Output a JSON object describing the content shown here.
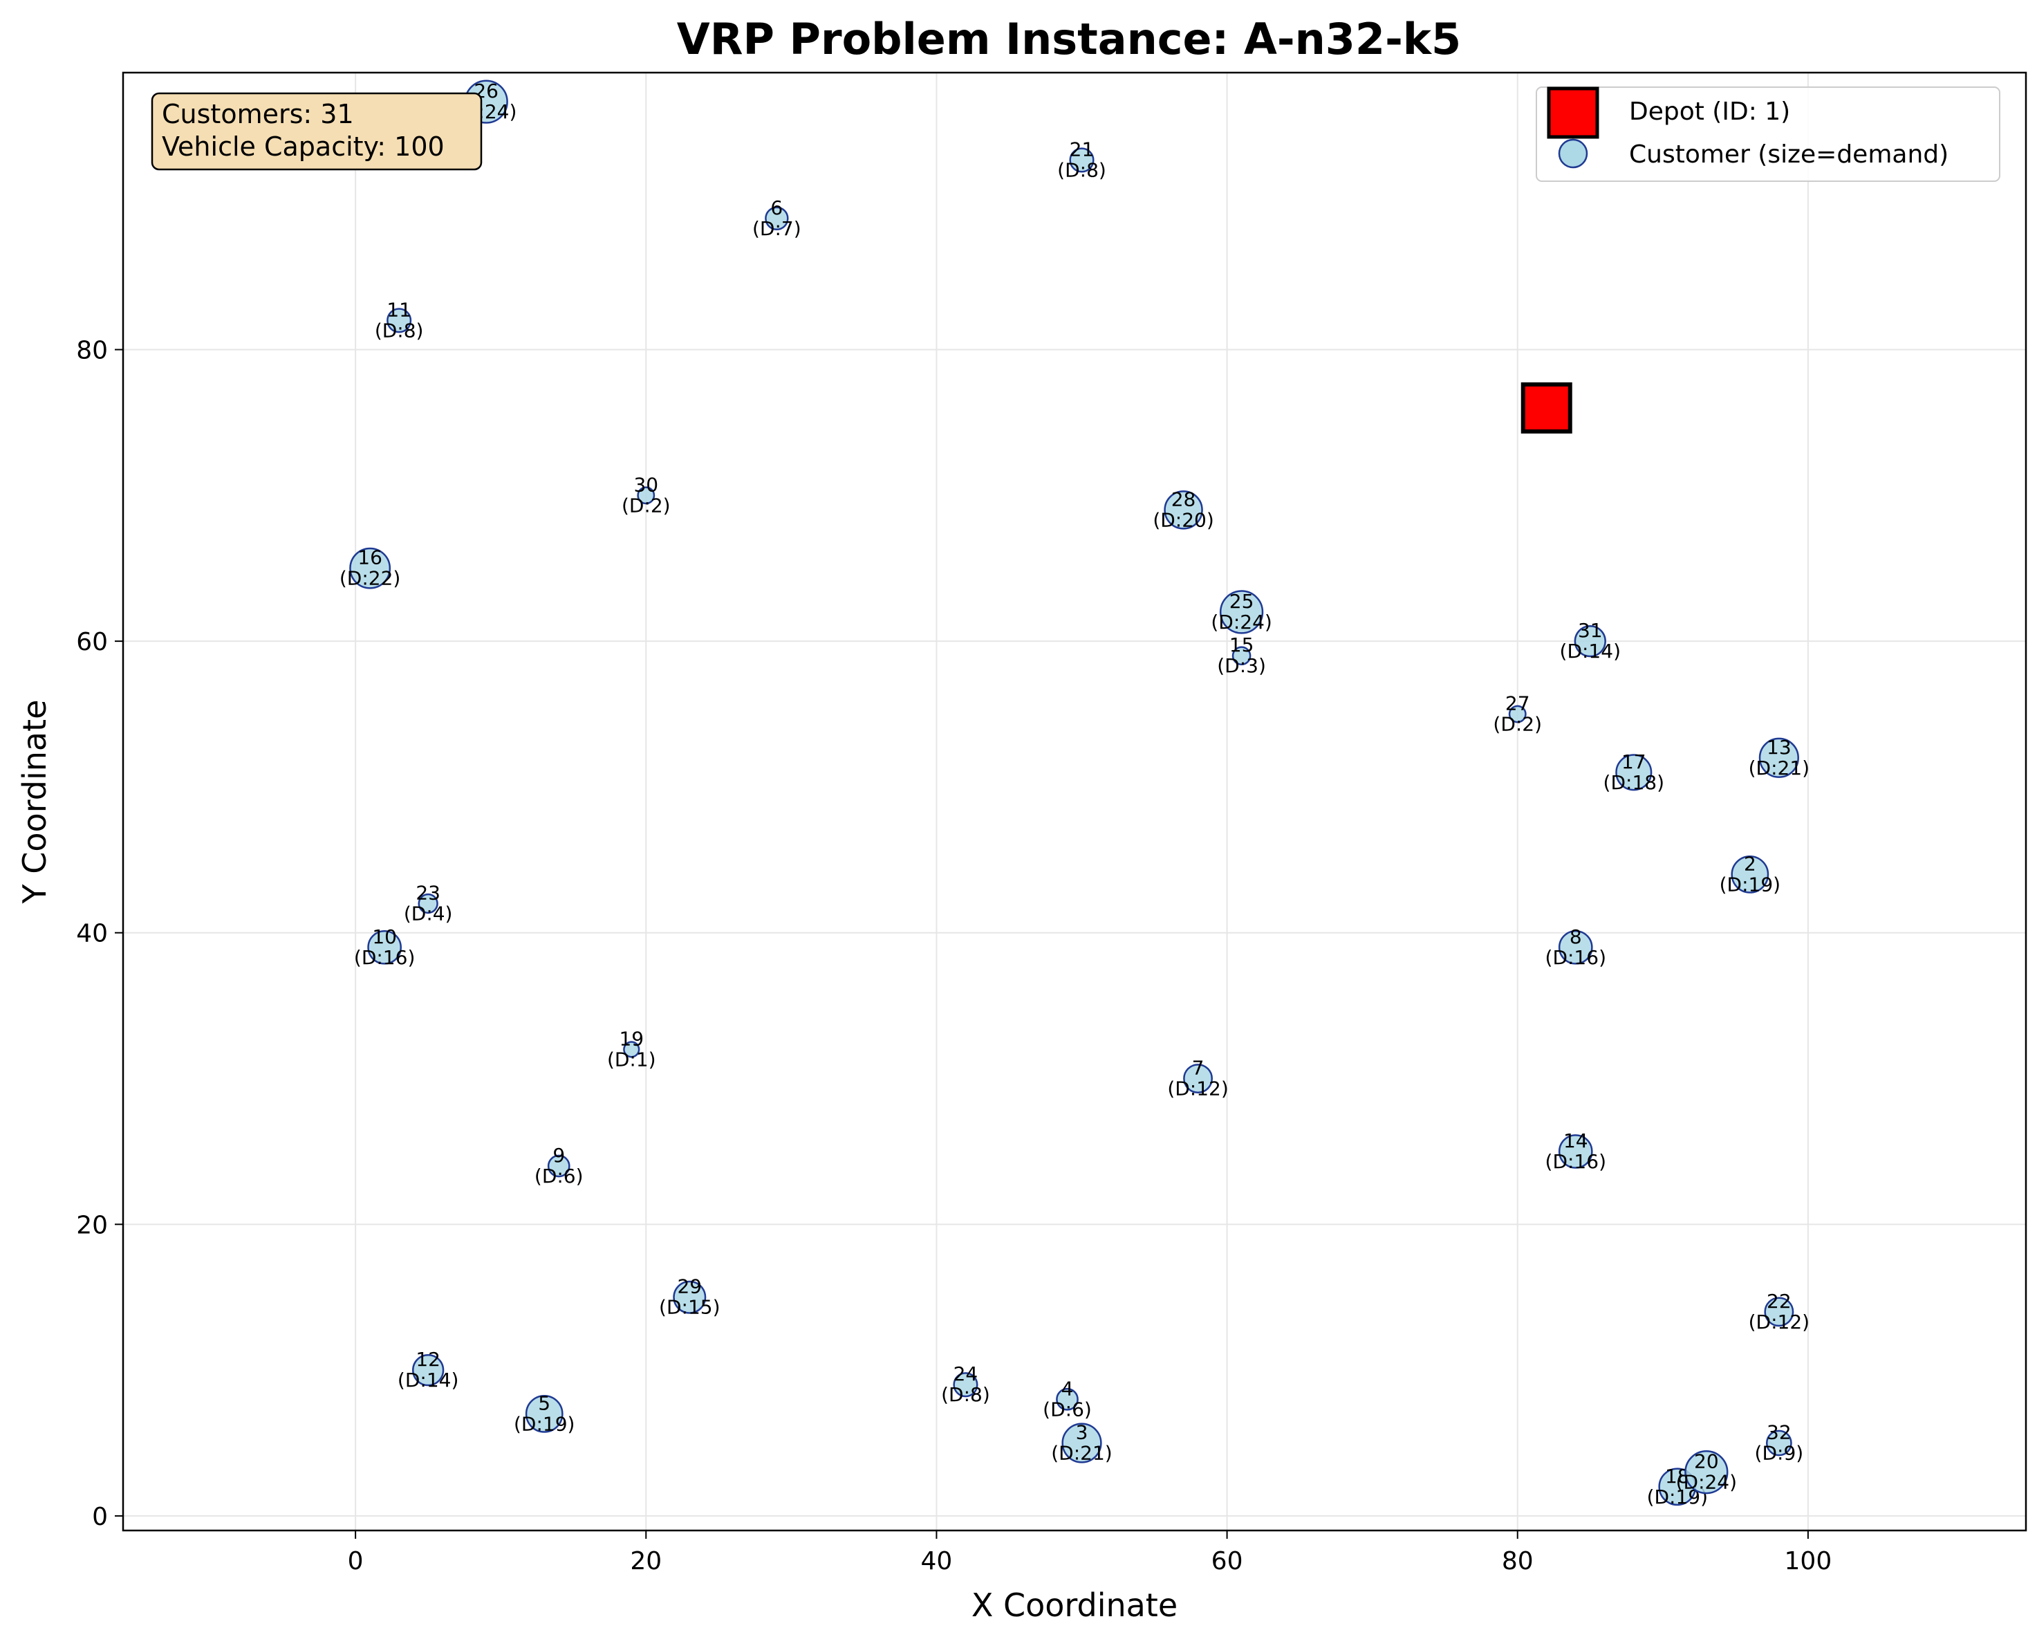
{
  "chart_data": {
    "type": "scatter",
    "title": "VRP Problem Instance: A-n32-k5",
    "xlabel": "X Coordinate",
    "ylabel": "Y Coordinate",
    "xlim": [
      -16,
      115
    ],
    "ylim": [
      -1,
      99
    ],
    "xticks": [
      0,
      20,
      40,
      60,
      80,
      100
    ],
    "yticks": [
      0,
      20,
      40,
      60,
      80
    ],
    "grid": true,
    "legend_position": "top-right",
    "info_box": {
      "customers_text": "Customers: 31",
      "capacity_text": "Vehicle Capacity: 100"
    },
    "legend": {
      "depot": "Depot (ID: 1)",
      "customer": "Customer (size=demand)"
    },
    "colors": {
      "depot_fill": "#ff0000",
      "depot_edge": "#000000",
      "customer_fill": "#add8e6",
      "customer_edge": "#1f3a93",
      "info_box_fill": "#f5deb3",
      "grid": "#e6e6e6"
    },
    "depot": {
      "id": 1,
      "x": 82,
      "y": 76
    },
    "customers": [
      {
        "id": 2,
        "x": 96,
        "y": 44,
        "demand": 19
      },
      {
        "id": 3,
        "x": 50,
        "y": 5,
        "demand": 21
      },
      {
        "id": 4,
        "x": 49,
        "y": 8,
        "demand": 6
      },
      {
        "id": 5,
        "x": 13,
        "y": 7,
        "demand": 19
      },
      {
        "id": 6,
        "x": 29,
        "y": 89,
        "demand": 7
      },
      {
        "id": 7,
        "x": 58,
        "y": 30,
        "demand": 12
      },
      {
        "id": 8,
        "x": 84,
        "y": 39,
        "demand": 16
      },
      {
        "id": 9,
        "x": 14,
        "y": 24,
        "demand": 6
      },
      {
        "id": 10,
        "x": 2,
        "y": 39,
        "demand": 16
      },
      {
        "id": 11,
        "x": 3,
        "y": 82,
        "demand": 8
      },
      {
        "id": 12,
        "x": 5,
        "y": 10,
        "demand": 14
      },
      {
        "id": 13,
        "x": 98,
        "y": 52,
        "demand": 21
      },
      {
        "id": 14,
        "x": 84,
        "y": 25,
        "demand": 16
      },
      {
        "id": 15,
        "x": 61,
        "y": 59,
        "demand": 3
      },
      {
        "id": 16,
        "x": 1,
        "y": 65,
        "demand": 22
      },
      {
        "id": 17,
        "x": 88,
        "y": 51,
        "demand": 18
      },
      {
        "id": 18,
        "x": 91,
        "y": 2,
        "demand": 19
      },
      {
        "id": 19,
        "x": 19,
        "y": 32,
        "demand": 1
      },
      {
        "id": 20,
        "x": 93,
        "y": 3,
        "demand": 24
      },
      {
        "id": 21,
        "x": 50,
        "y": 93,
        "demand": 8
      },
      {
        "id": 22,
        "x": 98,
        "y": 14,
        "demand": 12
      },
      {
        "id": 23,
        "x": 5,
        "y": 42,
        "demand": 4
      },
      {
        "id": 24,
        "x": 42,
        "y": 9,
        "demand": 8
      },
      {
        "id": 25,
        "x": 61,
        "y": 62,
        "demand": 24
      },
      {
        "id": 26,
        "x": 9,
        "y": 97,
        "demand": 24
      },
      {
        "id": 27,
        "x": 80,
        "y": 55,
        "demand": 2
      },
      {
        "id": 28,
        "x": 57,
        "y": 69,
        "demand": 20
      },
      {
        "id": 29,
        "x": 23,
        "y": 15,
        "demand": 15
      },
      {
        "id": 30,
        "x": 20,
        "y": 70,
        "demand": 2
      },
      {
        "id": 31,
        "x": 85,
        "y": 60,
        "demand": 14
      },
      {
        "id": 32,
        "x": 98,
        "y": 5,
        "demand": 9
      }
    ]
  }
}
